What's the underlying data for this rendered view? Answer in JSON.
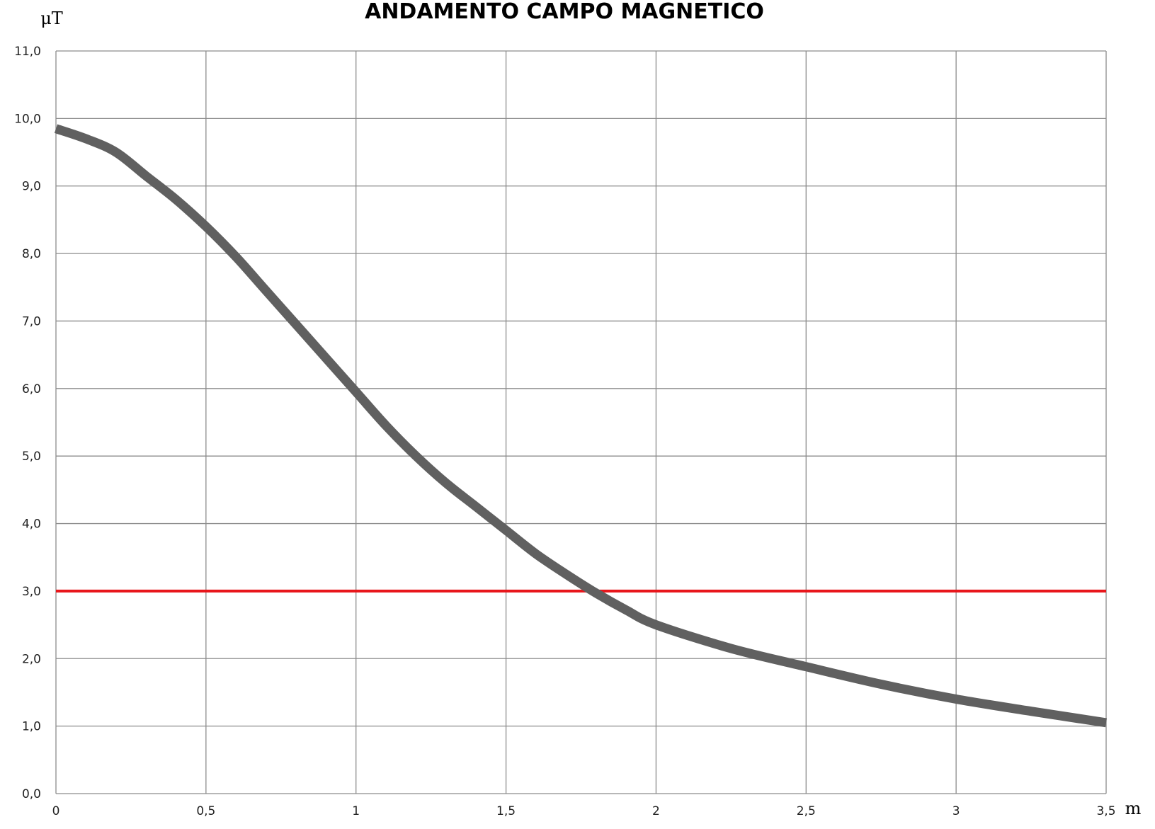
{
  "chart_data": {
    "type": "line",
    "title": "ANDAMENTO CAMPO MAGNETICO",
    "ylabel": "μT",
    "xlabel": "m",
    "xlim": [
      0,
      3.5
    ],
    "ylim": [
      0,
      11
    ],
    "grid": true,
    "x_ticks": [
      0,
      0.5,
      1,
      1.5,
      2,
      2.5,
      3,
      3.5
    ],
    "x_tick_labels": [
      "0",
      "0,5",
      "1",
      "1,5",
      "2",
      "2,5",
      "3",
      "3,5"
    ],
    "y_ticks": [
      0,
      1,
      2,
      3,
      4,
      5,
      6,
      7,
      8,
      9,
      10,
      11
    ],
    "y_tick_labels": [
      "0,0",
      "1,0",
      "2,0",
      "3,0",
      "4,0",
      "5,0",
      "6,0",
      "7,0",
      "8,0",
      "9,0",
      "10,0",
      "11,0"
    ],
    "series": [
      {
        "color": "#606060",
        "x": [
          0,
          0.1,
          0.2,
          0.3,
          0.4,
          0.5,
          0.6,
          0.7,
          0.8,
          0.9,
          1.0,
          1.1,
          1.2,
          1.3,
          1.4,
          1.5,
          1.6,
          1.7,
          1.8,
          1.9,
          2.0,
          2.25,
          2.5,
          2.75,
          3.0,
          3.25,
          3.5
        ],
        "y": [
          9.85,
          9.7,
          9.5,
          9.15,
          8.8,
          8.4,
          7.95,
          7.45,
          6.95,
          6.45,
          5.95,
          5.45,
          5.0,
          4.6,
          4.25,
          3.9,
          3.55,
          3.25,
          2.97,
          2.72,
          2.5,
          2.15,
          1.88,
          1.62,
          1.4,
          1.22,
          1.05
        ]
      },
      {
        "color": "#e8161b",
        "x": [
          0,
          3.5
        ],
        "y": [
          3.0,
          3.0
        ]
      }
    ]
  }
}
